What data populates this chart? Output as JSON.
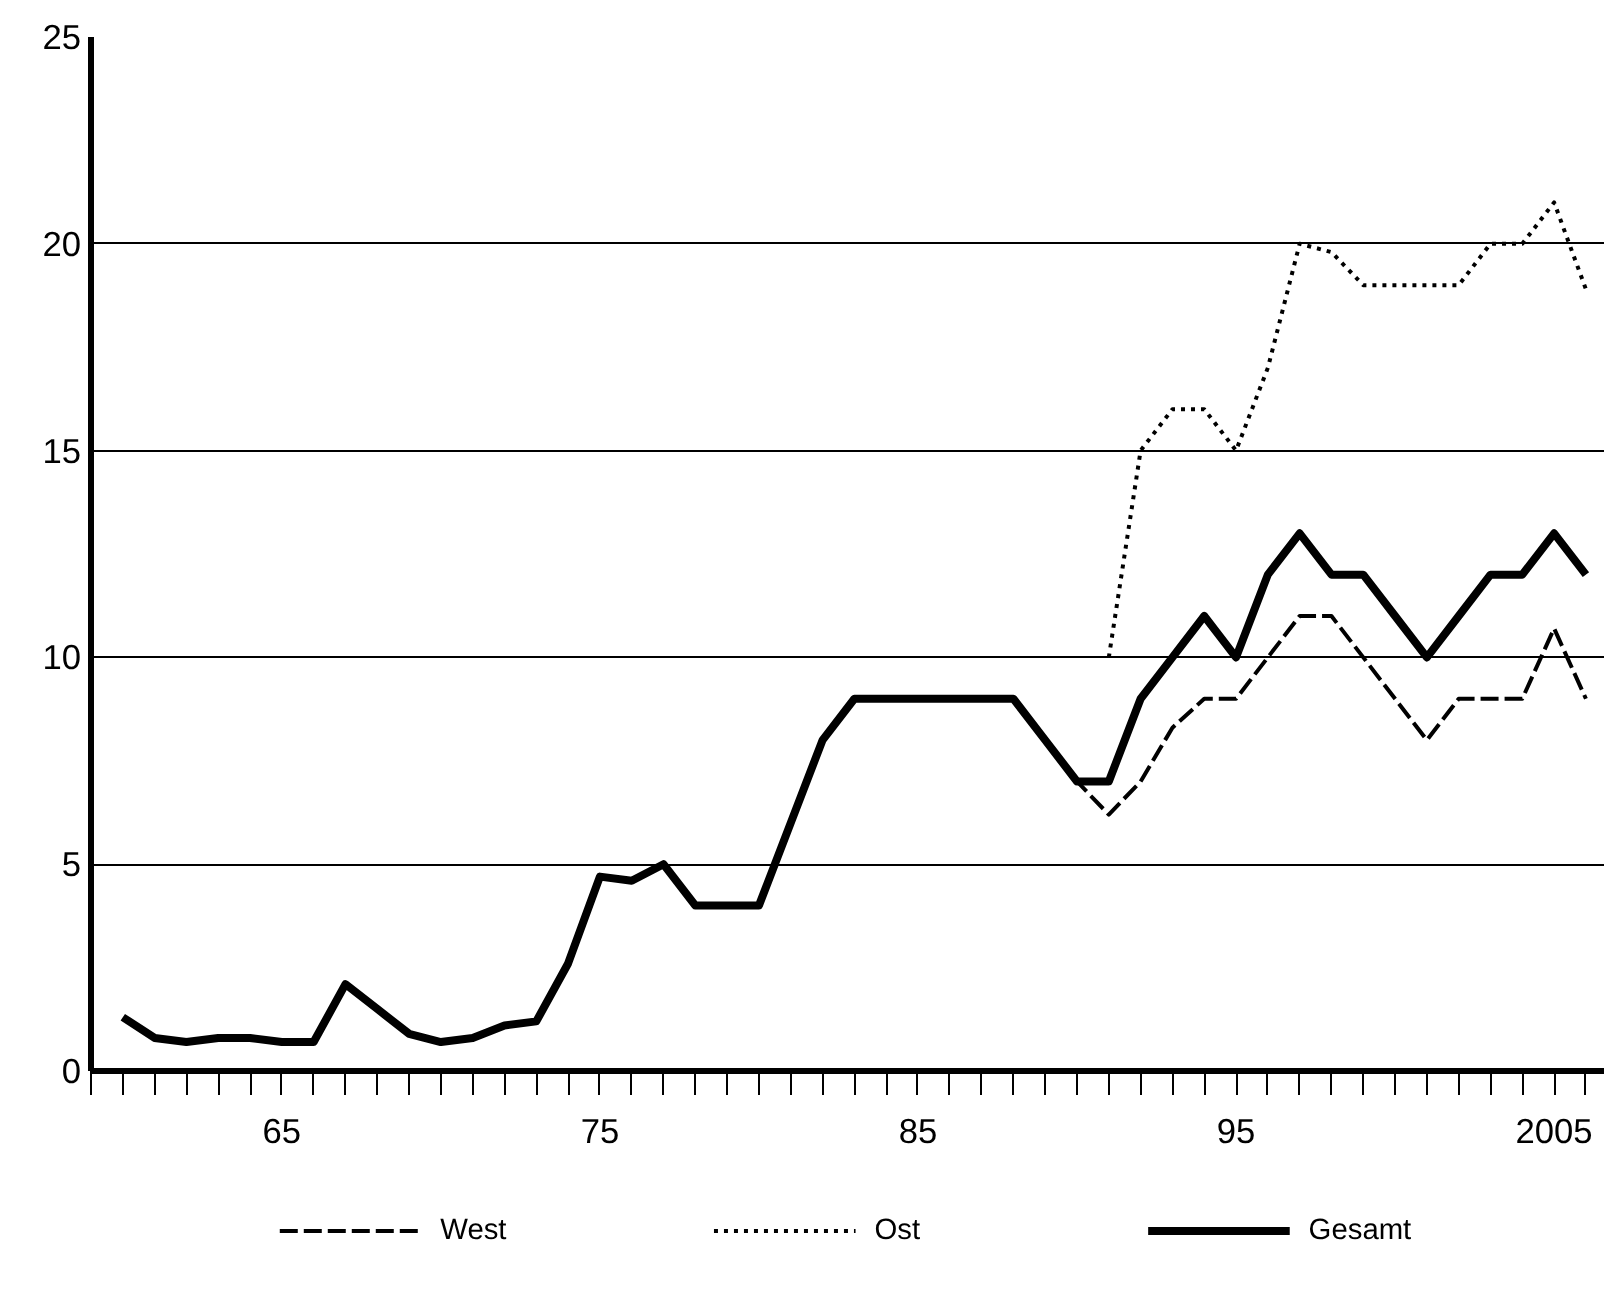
{
  "chart_data": {
    "type": "line",
    "x": [
      1960,
      1961,
      1962,
      1963,
      1964,
      1965,
      1966,
      1967,
      1968,
      1969,
      1970,
      1971,
      1972,
      1973,
      1974,
      1975,
      1976,
      1977,
      1978,
      1979,
      1980,
      1981,
      1982,
      1983,
      1984,
      1985,
      1986,
      1987,
      1988,
      1989,
      1990,
      1991,
      1992,
      1993,
      1994,
      1995,
      1996,
      1997,
      1998,
      1999,
      2000,
      2001,
      2002,
      2003,
      2004,
      2005,
      2006
    ],
    "series": [
      {
        "name": "West",
        "color": "#000000",
        "line_style": "dashed",
        "values": [
          null,
          null,
          null,
          null,
          null,
          null,
          null,
          null,
          null,
          null,
          null,
          null,
          null,
          null,
          null,
          null,
          null,
          null,
          null,
          null,
          null,
          null,
          null,
          null,
          null,
          null,
          null,
          null,
          null,
          8,
          7,
          6.2,
          7,
          8.3,
          9,
          9,
          10,
          11,
          11,
          10,
          9,
          8,
          9,
          9,
          9,
          10.7,
          9
        ]
      },
      {
        "name": "Ost",
        "color": "#000000",
        "line_style": "dotted",
        "values": [
          null,
          null,
          null,
          null,
          null,
          null,
          null,
          null,
          null,
          null,
          null,
          null,
          null,
          null,
          null,
          null,
          null,
          null,
          null,
          null,
          null,
          null,
          null,
          null,
          null,
          null,
          null,
          null,
          null,
          null,
          null,
          10,
          15,
          16,
          16,
          15,
          17,
          20,
          19.8,
          19,
          19,
          19,
          19,
          20,
          20,
          21,
          18.9
        ]
      },
      {
        "name": "Gesamt",
        "color": "#000000",
        "line_style": "solid",
        "values": [
          1.3,
          0.8,
          0.7,
          0.8,
          0.8,
          0.7,
          0.7,
          2.1,
          1.5,
          0.9,
          0.7,
          0.8,
          1.1,
          1.2,
          2.6,
          4.7,
          4.6,
          5,
          4,
          4,
          4,
          6,
          8,
          9,
          9,
          9,
          9,
          9,
          9,
          8,
          7,
          7,
          9,
          10,
          11,
          10,
          12,
          13,
          12,
          12,
          11,
          10,
          11,
          12,
          12,
          13,
          12
        ]
      }
    ],
    "xlim": [
      1959,
      2006.6
    ],
    "xticks": [
      {
        "value": 1959,
        "label": null
      },
      {
        "value": 1960,
        "label": null
      },
      {
        "value": 1961,
        "label": null
      },
      {
        "value": 1962,
        "label": null
      },
      {
        "value": 1963,
        "label": null
      },
      {
        "value": 1964,
        "label": null
      },
      {
        "value": 1965,
        "label": "65"
      },
      {
        "value": 1966,
        "label": null
      },
      {
        "value": 1967,
        "label": null
      },
      {
        "value": 1968,
        "label": null
      },
      {
        "value": 1969,
        "label": null
      },
      {
        "value": 1970,
        "label": null
      },
      {
        "value": 1971,
        "label": null
      },
      {
        "value": 1972,
        "label": null
      },
      {
        "value": 1973,
        "label": null
      },
      {
        "value": 1974,
        "label": null
      },
      {
        "value": 1975,
        "label": "75"
      },
      {
        "value": 1976,
        "label": null
      },
      {
        "value": 1977,
        "label": null
      },
      {
        "value": 1978,
        "label": null
      },
      {
        "value": 1979,
        "label": null
      },
      {
        "value": 1980,
        "label": null
      },
      {
        "value": 1981,
        "label": null
      },
      {
        "value": 1982,
        "label": null
      },
      {
        "value": 1983,
        "label": null
      },
      {
        "value": 1984,
        "label": null
      },
      {
        "value": 1985,
        "label": "85"
      },
      {
        "value": 1986,
        "label": null
      },
      {
        "value": 1987,
        "label": null
      },
      {
        "value": 1988,
        "label": null
      },
      {
        "value": 1989,
        "label": null
      },
      {
        "value": 1990,
        "label": null
      },
      {
        "value": 1991,
        "label": null
      },
      {
        "value": 1992,
        "label": null
      },
      {
        "value": 1993,
        "label": null
      },
      {
        "value": 1994,
        "label": null
      },
      {
        "value": 1995,
        "label": "95"
      },
      {
        "value": 1996,
        "label": null
      },
      {
        "value": 1997,
        "label": null
      },
      {
        "value": 1998,
        "label": null
      },
      {
        "value": 1999,
        "label": null
      },
      {
        "value": 2000,
        "label": null
      },
      {
        "value": 2001,
        "label": null
      },
      {
        "value": 2002,
        "label": null
      },
      {
        "value": 2003,
        "label": null
      },
      {
        "value": 2004,
        "label": null
      },
      {
        "value": 2005,
        "label": "2005"
      },
      {
        "value": 2006,
        "label": null
      }
    ],
    "ylim": [
      0,
      25
    ],
    "yticks": [
      0,
      5,
      10,
      15,
      20,
      25
    ],
    "grid": "y",
    "legend": "bottom",
    "marker": "none"
  }
}
